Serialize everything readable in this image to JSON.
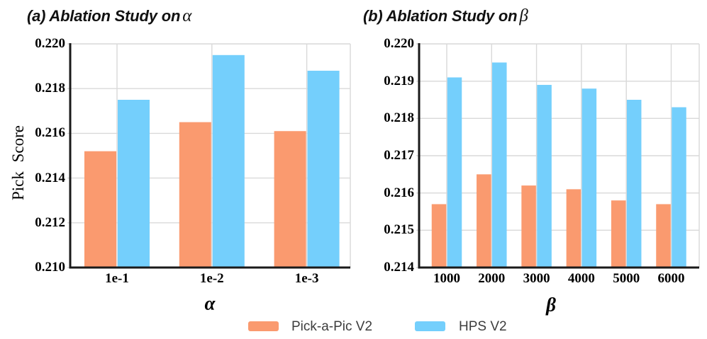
{
  "figure": {
    "background": "#ffffff",
    "text_color": "#000000",
    "grid_color": "#D9D9D9",
    "axis_color": "#1a1a1a"
  },
  "legend": {
    "items": [
      {
        "label": "Pick-a-Pic V2",
        "color": "#FA9A6F"
      },
      {
        "label": "HPS V2",
        "color": "#74CFFC"
      }
    ]
  },
  "chart_data": [
    {
      "type": "bar",
      "title": "(a) Ablation Study on α",
      "title_text": "(a) Ablation Study on",
      "title_symbol": "α",
      "xlabel": "α",
      "ylabel": "Pick Score",
      "categories": [
        "1e-1",
        "1e-2",
        "1e-3"
      ],
      "series": [
        {
          "name": "Pick-a-Pic V2",
          "color": "#FA9A6F",
          "values": [
            0.2152,
            0.2165,
            0.2161
          ]
        },
        {
          "name": "HPS V2",
          "color": "#74CFFC",
          "values": [
            0.2175,
            0.2195,
            0.2188
          ]
        }
      ],
      "ylim": [
        0.21,
        0.22
      ],
      "ytick_step": 0.002,
      "ytick_decimals": 3,
      "grid": true,
      "legend_position": "bottom-center"
    },
    {
      "type": "bar",
      "title": "(b) Ablation Study on β",
      "title_text": "(b) Ablation Study on",
      "title_symbol": "β",
      "xlabel": "β",
      "ylabel": "",
      "categories": [
        "1000",
        "2000",
        "3000",
        "4000",
        "5000",
        "6000"
      ],
      "series": [
        {
          "name": "Pick-a-Pic V2",
          "color": "#FA9A6F",
          "values": [
            0.2157,
            0.2165,
            0.2162,
            0.2161,
            0.2158,
            0.2157
          ]
        },
        {
          "name": "HPS V2",
          "color": "#74CFFC",
          "values": [
            0.2191,
            0.2195,
            0.2189,
            0.2188,
            0.2185,
            0.2183
          ]
        }
      ],
      "ylim": [
        0.214,
        0.22
      ],
      "ytick_step": 0.001,
      "ytick_decimals": 3,
      "grid": true,
      "legend_position": "bottom-center"
    }
  ]
}
